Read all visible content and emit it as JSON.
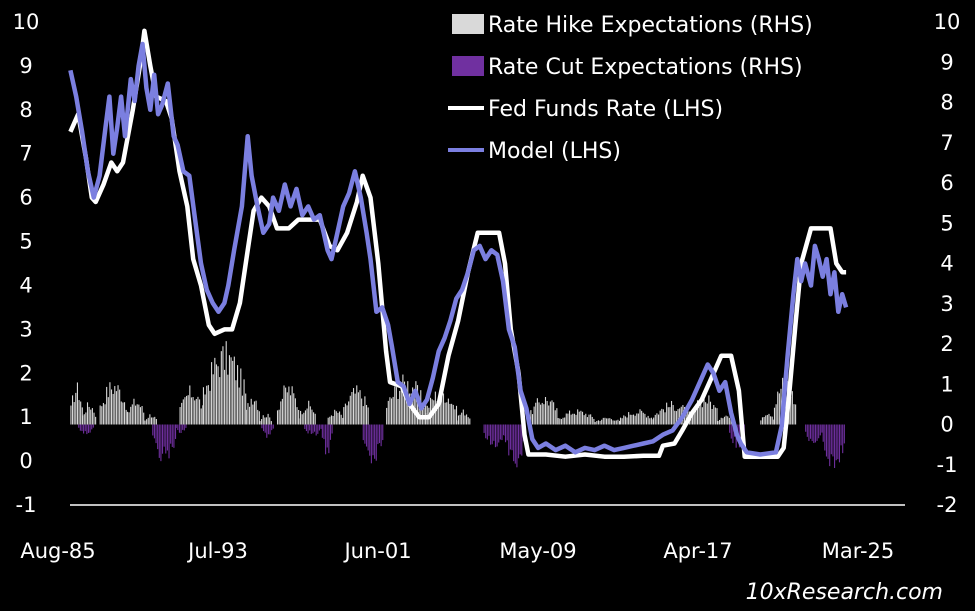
{
  "chart_data": {
    "type": "line+bar",
    "title": "",
    "x_tick_labels": [
      "Aug-85",
      "Jul-93",
      "Jun-01",
      "May-09",
      "Apr-17",
      "Mar-25"
    ],
    "x_range": [
      1985.58,
      2025.5
    ],
    "left_axis": {
      "label": "LHS",
      "ticks": [
        10,
        9,
        8,
        7,
        6,
        5,
        4,
        3,
        2,
        1,
        0,
        -1
      ],
      "range": [
        -1,
        10
      ]
    },
    "right_axis": {
      "label": "RHS",
      "ticks": [
        10,
        9,
        8,
        7,
        6,
        5,
        4,
        3,
        2,
        1,
        0,
        -1,
        -2
      ],
      "range": [
        -2,
        10
      ]
    },
    "legend": [
      {
        "label": "Rate Hike Expectations (RHS)",
        "color": "#d9d9d9",
        "kind": "bar"
      },
      {
        "label": "Rate Cut Expectations (RHS)",
        "color": "#7030a0",
        "kind": "bar"
      },
      {
        "label": "Fed Funds Rate (LHS)",
        "color": "#ffffff",
        "kind": "line"
      },
      {
        "label": "Model (LHS)",
        "color": "#7b7fe0",
        "kind": "line"
      }
    ],
    "series": [
      {
        "name": "Fed Funds Rate (LHS)",
        "axis": "left",
        "points": [
          [
            1985.6,
            7.5
          ],
          [
            1986.0,
            7.9
          ],
          [
            1986.4,
            6.9
          ],
          [
            1986.7,
            6.0
          ],
          [
            1986.9,
            5.9
          ],
          [
            1987.3,
            6.3
          ],
          [
            1987.7,
            6.8
          ],
          [
            1988.0,
            6.6
          ],
          [
            1988.3,
            6.8
          ],
          [
            1988.8,
            8.0
          ],
          [
            1989.2,
            9.1
          ],
          [
            1989.4,
            9.8
          ],
          [
            1989.7,
            9.0
          ],
          [
            1990.0,
            8.3
          ],
          [
            1990.5,
            8.2
          ],
          [
            1990.8,
            7.8
          ],
          [
            1991.2,
            6.6
          ],
          [
            1991.6,
            5.8
          ],
          [
            1991.9,
            4.6
          ],
          [
            1992.3,
            4.0
          ],
          [
            1992.7,
            3.1
          ],
          [
            1993.0,
            2.9
          ],
          [
            1993.5,
            3.0
          ],
          [
            1993.9,
            3.0
          ],
          [
            1994.3,
            3.6
          ],
          [
            1994.7,
            4.8
          ],
          [
            1995.0,
            5.7
          ],
          [
            1995.4,
            6.0
          ],
          [
            1995.8,
            5.8
          ],
          [
            1996.2,
            5.3
          ],
          [
            1996.8,
            5.3
          ],
          [
            1997.3,
            5.5
          ],
          [
            1997.8,
            5.5
          ],
          [
            1998.4,
            5.5
          ],
          [
            1998.9,
            4.9
          ],
          [
            1999.3,
            4.8
          ],
          [
            1999.8,
            5.2
          ],
          [
            2000.3,
            5.9
          ],
          [
            2000.6,
            6.5
          ],
          [
            2001.0,
            6.0
          ],
          [
            2001.4,
            4.5
          ],
          [
            2001.8,
            2.5
          ],
          [
            2002.0,
            1.8
          ],
          [
            2002.6,
            1.7
          ],
          [
            2003.0,
            1.3
          ],
          [
            2003.5,
            1.0
          ],
          [
            2004.0,
            1.0
          ],
          [
            2004.5,
            1.3
          ],
          [
            2005.0,
            2.4
          ],
          [
            2005.5,
            3.2
          ],
          [
            2006.0,
            4.3
          ],
          [
            2006.5,
            5.2
          ],
          [
            2007.0,
            5.2
          ],
          [
            2007.6,
            5.2
          ],
          [
            2007.9,
            4.5
          ],
          [
            2008.2,
            3.0
          ],
          [
            2008.6,
            2.0
          ],
          [
            2008.9,
            0.6
          ],
          [
            2009.1,
            0.15
          ],
          [
            2010.0,
            0.15
          ],
          [
            2011.0,
            0.1
          ],
          [
            2012.0,
            0.15
          ],
          [
            2013.0,
            0.1
          ],
          [
            2014.0,
            0.1
          ],
          [
            2015.0,
            0.12
          ],
          [
            2015.8,
            0.12
          ],
          [
            2016.0,
            0.35
          ],
          [
            2016.6,
            0.4
          ],
          [
            2017.0,
            0.7
          ],
          [
            2017.5,
            1.1
          ],
          [
            2018.0,
            1.4
          ],
          [
            2018.5,
            1.9
          ],
          [
            2019.0,
            2.4
          ],
          [
            2019.5,
            2.4
          ],
          [
            2019.9,
            1.6
          ],
          [
            2020.2,
            0.1
          ],
          [
            2021.0,
            0.1
          ],
          [
            2021.9,
            0.1
          ],
          [
            2022.2,
            0.3
          ],
          [
            2022.5,
            1.6
          ],
          [
            2022.8,
            3.1
          ],
          [
            2023.1,
            4.5
          ],
          [
            2023.6,
            5.3
          ],
          [
            2024.0,
            5.3
          ],
          [
            2024.6,
            5.3
          ],
          [
            2024.9,
            4.5
          ],
          [
            2025.2,
            4.3
          ],
          [
            2025.4,
            4.3
          ]
        ]
      },
      {
        "name": "Model (LHS)",
        "axis": "left",
        "points": [
          [
            1985.6,
            8.9
          ],
          [
            1985.9,
            8.3
          ],
          [
            1986.2,
            7.5
          ],
          [
            1986.5,
            6.6
          ],
          [
            1986.8,
            6.0
          ],
          [
            1987.1,
            6.5
          ],
          [
            1987.4,
            7.6
          ],
          [
            1987.6,
            8.3
          ],
          [
            1987.8,
            7.0
          ],
          [
            1988.0,
            7.6
          ],
          [
            1988.2,
            8.3
          ],
          [
            1988.4,
            7.4
          ],
          [
            1988.7,
            8.7
          ],
          [
            1988.9,
            8.2
          ],
          [
            1989.1,
            9.0
          ],
          [
            1989.3,
            9.5
          ],
          [
            1989.5,
            8.5
          ],
          [
            1989.7,
            8.0
          ],
          [
            1989.9,
            8.8
          ],
          [
            1990.1,
            7.9
          ],
          [
            1990.3,
            8.1
          ],
          [
            1990.6,
            8.6
          ],
          [
            1990.9,
            7.4
          ],
          [
            1991.1,
            7.2
          ],
          [
            1991.4,
            6.6
          ],
          [
            1991.7,
            6.5
          ],
          [
            1992.0,
            5.5
          ],
          [
            1992.3,
            4.5
          ],
          [
            1992.6,
            3.9
          ],
          [
            1992.9,
            3.6
          ],
          [
            1993.2,
            3.4
          ],
          [
            1993.5,
            3.6
          ],
          [
            1993.7,
            4.0
          ],
          [
            1994.0,
            4.8
          ],
          [
            1994.4,
            5.8
          ],
          [
            1994.7,
            7.4
          ],
          [
            1994.9,
            6.5
          ],
          [
            1995.2,
            5.8
          ],
          [
            1995.5,
            5.2
          ],
          [
            1995.8,
            5.4
          ],
          [
            1996.0,
            6.0
          ],
          [
            1996.3,
            5.7
          ],
          [
            1996.6,
            6.3
          ],
          [
            1996.9,
            5.8
          ],
          [
            1997.2,
            6.2
          ],
          [
            1997.5,
            5.6
          ],
          [
            1997.8,
            5.8
          ],
          [
            1998.1,
            5.5
          ],
          [
            1998.4,
            5.6
          ],
          [
            1998.8,
            4.8
          ],
          [
            1999.0,
            4.6
          ],
          [
            1999.3,
            5.2
          ],
          [
            1999.6,
            5.8
          ],
          [
            1999.9,
            6.1
          ],
          [
            2000.2,
            6.6
          ],
          [
            2000.5,
            6.0
          ],
          [
            2000.8,
            5.2
          ],
          [
            2001.0,
            4.6
          ],
          [
            2001.3,
            3.4
          ],
          [
            2001.6,
            3.5
          ],
          [
            2001.9,
            3.1
          ],
          [
            2002.1,
            2.6
          ],
          [
            2002.4,
            1.8
          ],
          [
            2002.7,
            1.7
          ],
          [
            2003.0,
            1.3
          ],
          [
            2003.3,
            1.6
          ],
          [
            2003.6,
            1.2
          ],
          [
            2003.9,
            1.4
          ],
          [
            2004.2,
            1.9
          ],
          [
            2004.5,
            2.5
          ],
          [
            2004.8,
            2.8
          ],
          [
            2005.1,
            3.2
          ],
          [
            2005.4,
            3.7
          ],
          [
            2005.7,
            3.9
          ],
          [
            2006.0,
            4.3
          ],
          [
            2006.3,
            4.8
          ],
          [
            2006.6,
            4.9
          ],
          [
            2006.9,
            4.6
          ],
          [
            2007.2,
            4.8
          ],
          [
            2007.5,
            4.7
          ],
          [
            2007.8,
            4.1
          ],
          [
            2008.1,
            3.0
          ],
          [
            2008.4,
            2.6
          ],
          [
            2008.7,
            1.6
          ],
          [
            2009.0,
            1.2
          ],
          [
            2009.3,
            0.5
          ],
          [
            2009.6,
            0.3
          ],
          [
            2010.0,
            0.4
          ],
          [
            2010.5,
            0.25
          ],
          [
            2011.0,
            0.35
          ],
          [
            2011.5,
            0.2
          ],
          [
            2012.0,
            0.3
          ],
          [
            2012.5,
            0.25
          ],
          [
            2013.0,
            0.35
          ],
          [
            2013.5,
            0.25
          ],
          [
            2014.0,
            0.3
          ],
          [
            2014.5,
            0.35
          ],
          [
            2015.0,
            0.4
          ],
          [
            2015.5,
            0.45
          ],
          [
            2016.0,
            0.6
          ],
          [
            2016.5,
            0.7
          ],
          [
            2017.0,
            1.0
          ],
          [
            2017.5,
            1.4
          ],
          [
            2017.9,
            1.8
          ],
          [
            2018.3,
            2.2
          ],
          [
            2018.6,
            2.0
          ],
          [
            2018.9,
            1.6
          ],
          [
            2019.2,
            1.8
          ],
          [
            2019.5,
            1.1
          ],
          [
            2019.8,
            0.6
          ],
          [
            2020.0,
            0.4
          ],
          [
            2020.3,
            0.2
          ],
          [
            2021.0,
            0.15
          ],
          [
            2021.8,
            0.2
          ],
          [
            2022.1,
            0.8
          ],
          [
            2022.4,
            2.4
          ],
          [
            2022.7,
            3.8
          ],
          [
            2022.9,
            4.6
          ],
          [
            2023.1,
            4.1
          ],
          [
            2023.3,
            4.5
          ],
          [
            2023.6,
            4.0
          ],
          [
            2023.8,
            4.9
          ],
          [
            2024.0,
            4.6
          ],
          [
            2024.2,
            4.2
          ],
          [
            2024.4,
            4.6
          ],
          [
            2024.6,
            3.8
          ],
          [
            2024.8,
            4.3
          ],
          [
            2025.0,
            3.4
          ],
          [
            2025.2,
            3.8
          ],
          [
            2025.4,
            3.5
          ]
        ]
      },
      {
        "name": "Rate Hike Expectations (RHS)",
        "axis": "right",
        "episodes": [
          [
            1985.6,
            1986.2,
            1.1
          ],
          [
            1986.2,
            1986.9,
            0.6
          ],
          [
            1987.1,
            1988.5,
            1.2
          ],
          [
            1988.5,
            1989.4,
            0.7
          ],
          [
            1989.4,
            1990.0,
            0.3
          ],
          [
            1991.2,
            1992.4,
            1.0
          ],
          [
            1992.4,
            1994.6,
            2.1
          ],
          [
            1994.6,
            1995.3,
            0.9
          ],
          [
            1995.3,
            1995.9,
            0.3
          ],
          [
            1996.2,
            1997.3,
            1.1
          ],
          [
            1997.3,
            1998.2,
            0.6
          ],
          [
            1998.8,
            1999.6,
            0.4
          ],
          [
            1999.6,
            2000.9,
            1.0
          ],
          [
            2001.8,
            2003.8,
            1.3
          ],
          [
            2003.8,
            2005.4,
            1.0
          ],
          [
            2005.4,
            2006.1,
            0.4
          ],
          [
            2009.2,
            2010.6,
            0.8
          ],
          [
            2010.6,
            2012.5,
            0.4
          ],
          [
            2012.5,
            2013.8,
            0.2
          ],
          [
            2013.8,
            2015.5,
            0.4
          ],
          [
            2015.5,
            2017.5,
            0.6
          ],
          [
            2017.5,
            2018.8,
            0.8
          ],
          [
            2018.8,
            2019.5,
            0.3
          ],
          [
            2021.0,
            2021.7,
            0.4
          ],
          [
            2021.7,
            2022.8,
            1.3
          ]
        ]
      },
      {
        "name": "Rate Cut Expectations (RHS)",
        "axis": "right",
        "episodes": [
          [
            1986.0,
            1986.8,
            -0.25
          ],
          [
            1989.8,
            1991.0,
            -1.0
          ],
          [
            1991.0,
            1991.5,
            -0.25
          ],
          [
            1995.4,
            1996.0,
            -0.35
          ],
          [
            1997.6,
            1998.5,
            -0.3
          ],
          [
            1998.5,
            1999.0,
            -0.9
          ],
          [
            2000.6,
            2001.6,
            -1.0
          ],
          [
            2006.8,
            2007.9,
            -0.6
          ],
          [
            2007.9,
            2008.9,
            -1.1
          ],
          [
            2019.4,
            2020.2,
            -0.6
          ],
          [
            2023.3,
            2024.2,
            -0.6
          ],
          [
            2024.2,
            2025.3,
            -1.2
          ]
        ]
      }
    ]
  },
  "watermark": "10xResearch.com"
}
